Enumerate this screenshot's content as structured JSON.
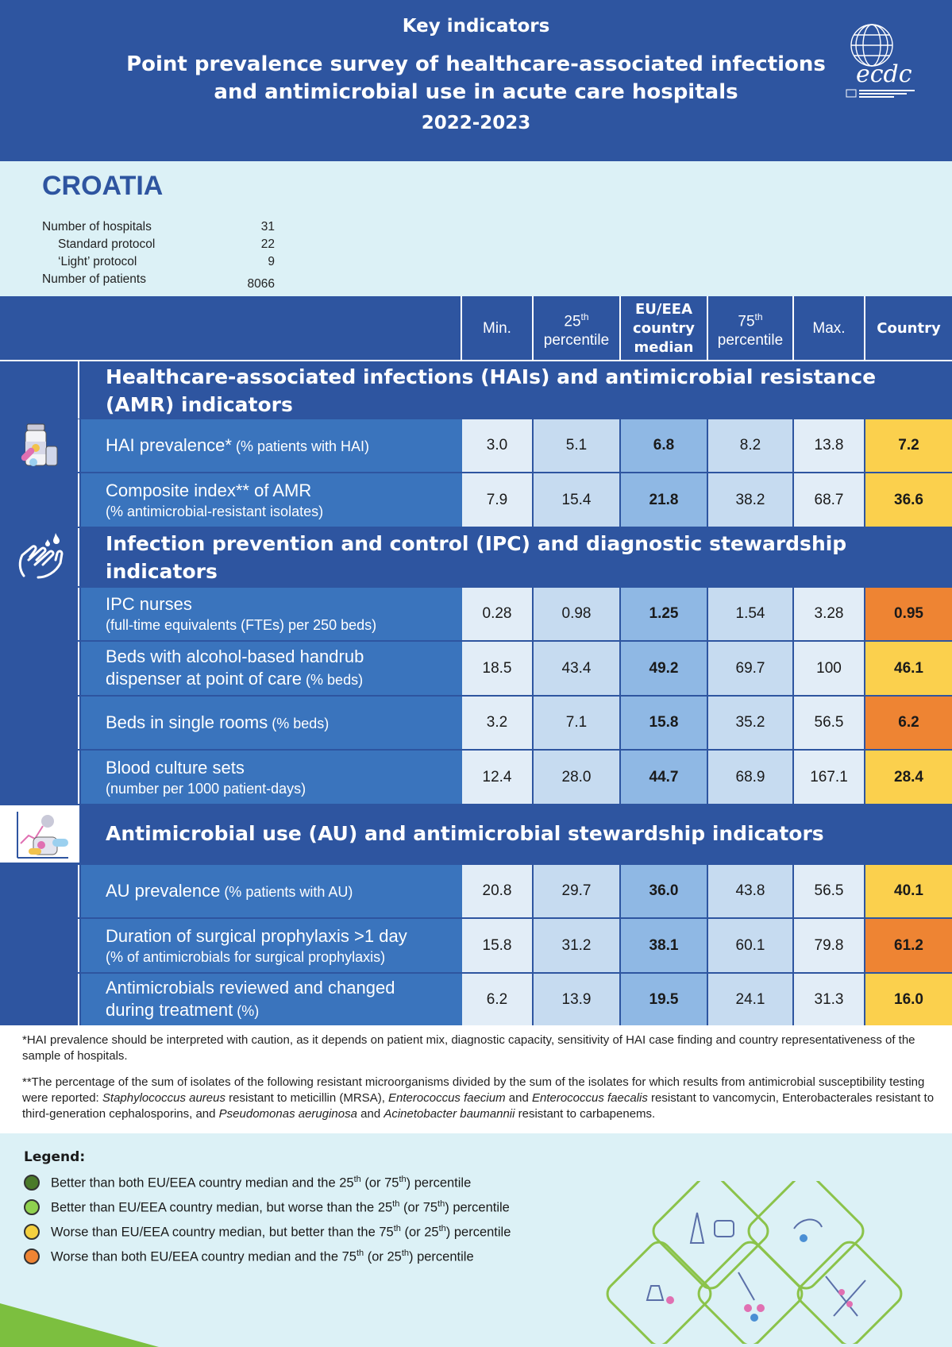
{
  "header": {
    "subtitle": "Key indicators",
    "title_line1": "Point prevalence survey of healthcare-associated infections",
    "title_line2": "and antimicrobial use in acute care hospitals",
    "years": "2022-2023",
    "logo_text": "ecdc"
  },
  "country": {
    "name": "CROATIA",
    "stats": [
      {
        "label": "Number of hospitals",
        "value": "31"
      },
      {
        "label": "Standard protocol",
        "value": "22"
      },
      {
        "label": "‘Light’ protocol",
        "value": "9"
      },
      {
        "label": "Number of patients",
        "value": "8066"
      }
    ]
  },
  "table": {
    "headers": {
      "min": "Min.",
      "p25_num": "25",
      "p25_sup": "th",
      "p25_word": "percentile",
      "median_l1": "EU/EEA",
      "median_l2": "country",
      "median_l3": "median",
      "p75_num": "75",
      "p75_sup": "th",
      "p75_word": "percentile",
      "max": "Max.",
      "country": "Country"
    },
    "sections": [
      {
        "title_l1": "Healthcare-associated infections (HAIs) and antimicrobial resistance",
        "title_l2": "(AMR) indicators"
      },
      {
        "title_l1": "Infection prevention and control (IPC) and diagnostic stewardship",
        "title_l2": "indicators"
      },
      {
        "title_l1": "Antimicrobial use (AU) and antimicrobial stewardship indicators"
      }
    ],
    "rows": [
      {
        "main": "HAI prevalence*",
        "main_small": " (% patients with HAI)",
        "sub": "",
        "min": "3.0",
        "p25": "5.1",
        "median": "6.8",
        "p75": "8.2",
        "max": "13.8",
        "country": "7.2",
        "status": "yellow"
      },
      {
        "main": "Composite index** of AMR",
        "main_small": "",
        "sub": "(% antimicrobial-resistant isolates)",
        "min": "7.9",
        "p25": "15.4",
        "median": "21.8",
        "p75": "38.2",
        "max": "68.7",
        "country": "36.6",
        "status": "yellow"
      },
      {
        "main": "IPC nurses",
        "main_small": "",
        "sub": "(full-time equivalents (FTEs) per 250 beds)",
        "min": "0.28",
        "p25": "0.98",
        "median": "1.25",
        "p75": "1.54",
        "max": "3.28",
        "country": "0.95",
        "status": "orange"
      },
      {
        "main": "Beds with alcohol-based handrub",
        "main2": "dispenser at point of care",
        "main2_small": " (% beds)",
        "min": "18.5",
        "p25": "43.4",
        "median": "49.2",
        "p75": "69.7",
        "max": "100",
        "country": "46.1",
        "status": "yellow"
      },
      {
        "main": "Beds in single rooms",
        "main_small": " (% beds)",
        "sub": "",
        "min": "3.2",
        "p25": "7.1",
        "median": "15.8",
        "p75": "35.2",
        "max": "56.5",
        "country": "6.2",
        "status": "orange"
      },
      {
        "main": "Blood culture sets",
        "main_small": "",
        "sub": "(number per 1000 patient-days)",
        "min": "12.4",
        "p25": "28.0",
        "median": "44.7",
        "p75": "68.9",
        "max": "167.1",
        "country": "28.4",
        "status": "yellow"
      },
      {
        "main": "AU prevalence",
        "main_small": " (% patients with AU)",
        "sub": "",
        "min": "20.8",
        "p25": "29.7",
        "median": "36.0",
        "p75": "43.8",
        "max": "56.5",
        "country": "40.1",
        "status": "yellow"
      },
      {
        "main": "Duration of surgical prophylaxis >1 day",
        "main_small": "",
        "sub": "(% of antimicrobials for surgical prophylaxis)",
        "min": "15.8",
        "p25": "31.2",
        "median": "38.1",
        "p75": "60.1",
        "max": "79.8",
        "country": "61.2",
        "status": "orange"
      },
      {
        "main": "Antimicrobials reviewed and changed",
        "main2": "during treatment",
        "main2_small": " (%)",
        "min": "6.2",
        "p25": "13.9",
        "median": "19.5",
        "p75": "24.1",
        "max": "31.3",
        "country": "16.0",
        "status": "yellow"
      }
    ]
  },
  "footnotes": {
    "fn1": "*HAI prevalence should be interpreted with caution, as it depends on patient mix, diagnostic capacity, sensitivity of HAI case finding and country representativeness of the sample of hospitals.",
    "fn2_a": "**The percentage of the sum of isolates of the following resistant microorganisms divided by the sum of the isolates for which results from antimicrobial susceptibility testing were reported: ",
    "fn2_b": "Staphylococcus aureus",
    "fn2_c": " resistant to meticillin (MRSA), ",
    "fn2_d": "Enterococcus faecium",
    "fn2_e": " and ",
    "fn2_f": "Enterococcus faecalis",
    "fn2_g": " resistant to vancomycin, Enterobacterales resistant to third-generation cephalosporins, and ",
    "fn2_h": "Pseudomonas aeruginosa",
    "fn2_i": " and ",
    "fn2_j": "Acinetobacter baumannii",
    "fn2_k": " resistant to carbapenems."
  },
  "legend": {
    "title": "Legend:",
    "items": [
      {
        "a": "Better than both EU/EEA country median and the 25",
        "s1": "th",
        "b": " (or 75",
        "s2": "th",
        "c": ") percentile",
        "color": "#4a7a2a"
      },
      {
        "a": "Better than EU/EEA country median, but worse than the 25",
        "s1": "th",
        "b": " (or 75",
        "s2": "th",
        "c": ") percentile",
        "color": "#8fd14f"
      },
      {
        "a": "Worse than EU/EEA country median, but better than the 75",
        "s1": "th",
        "b": " (or 25",
        "s2": "th",
        "c": ") percentile",
        "color": "#f4d03f"
      },
      {
        "a": "Worse than both EU/EEA country median and the 75",
        "s1": "th",
        "b": " (or 25",
        "s2": "th",
        "c": ") percentile",
        "color": "#ee8433"
      }
    ]
  },
  "colors": {
    "brand_blue": "#2e55a0",
    "label_blue": "#3a74bd",
    "yellow": "#fbd04d",
    "orange": "#ee8433"
  }
}
